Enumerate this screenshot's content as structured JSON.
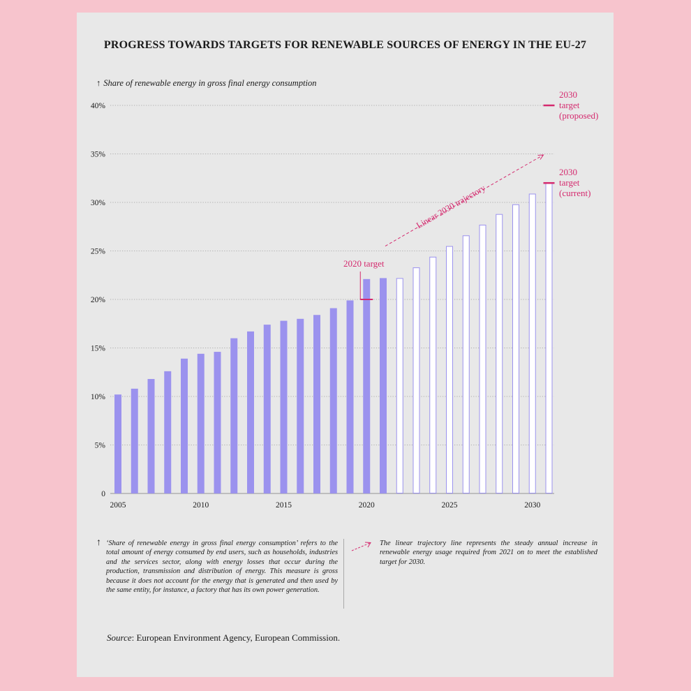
{
  "title": "PROGRESS TOWARDS TARGETS FOR RENEWABLE SOURCES OF ENERGY IN THE EU-27",
  "y_axis_label": "Share of renewable energy in gross final energy consumption",
  "colors": {
    "background": "#f7c4cd",
    "card": "#e8e8e8",
    "actual_bar": "#9b92ee",
    "projected_bar_stroke": "#9b92ee",
    "projected_bar_fill": "#ffffff",
    "target": "#d42a6e",
    "text": "#1a1a1a"
  },
  "chart_data": {
    "type": "bar",
    "title": "PROGRESS TOWARDS TARGETS FOR RENEWABLE SOURCES OF ENERGY IN THE EU-27",
    "ylabel": "Share of renewable energy in gross final energy consumption",
    "xlabel": "",
    "ylim": [
      0,
      40
    ],
    "y_ticks": [
      0,
      5,
      10,
      15,
      20,
      25,
      30,
      35,
      40
    ],
    "y_tick_labels": [
      "0",
      "5%",
      "10%",
      "15%",
      "20%",
      "25%",
      "30%",
      "35%",
      "40%"
    ],
    "x_tick_labels": [
      "2005",
      "2010",
      "2015",
      "2020",
      "2025",
      "2030"
    ],
    "x_tick_years": [
      2005,
      2010,
      2015,
      2020,
      2025,
      2030
    ],
    "grid": true,
    "series": [
      {
        "name": "Share of renewable energy (actual)",
        "style": "filled",
        "years": [
          2005,
          2006,
          2007,
          2008,
          2009,
          2010,
          2011,
          2012,
          2013,
          2014,
          2015,
          2016,
          2017,
          2018,
          2019,
          2020,
          2021
        ],
        "values": [
          10.2,
          10.8,
          11.8,
          12.6,
          13.9,
          14.4,
          14.6,
          16.0,
          16.7,
          17.4,
          17.8,
          18.0,
          18.4,
          19.1,
          19.9,
          22.1,
          22.2
        ]
      },
      {
        "name": "Linear trajectory to 2030 target",
        "style": "outline",
        "years": [
          2021,
          2022,
          2023,
          2024,
          2025,
          2026,
          2027,
          2028,
          2029,
          2030
        ],
        "values": [
          22.2,
          23.3,
          24.4,
          25.5,
          26.6,
          27.7,
          28.8,
          29.8,
          30.9,
          32.0
        ]
      }
    ],
    "targets": [
      {
        "label": "2020 target",
        "year": 2020,
        "value": 20
      },
      {
        "label_lines": [
          "2030",
          "target",
          "(current)"
        ],
        "year": 2030,
        "value": 32
      },
      {
        "label_lines": [
          "2030",
          "target",
          "(proposed)"
        ],
        "year": 2030,
        "value": 40
      }
    ],
    "trajectory_line": {
      "label": "Linear 2030 trajectory",
      "from": {
        "year": 2021,
        "value": 25.5
      },
      "to": {
        "year": 2030,
        "value": 34.9
      }
    }
  },
  "notes": {
    "left_symbol": "↑",
    "left": "‘Share of renewable energy in gross final energy consumption’ refers to the total amount of energy consumed by end users, such as households, industries and the services sector, along with energy losses that occur during the production, transmission and distribution of energy. This measure is gross because it does not account for the energy that is generated and then used by the same entity, for instance, a factory that has its own power generation.",
    "right": "The linear trajectory line represents the steady annual increase in renewable energy usage required from 2021 on to meet the established target for 2030."
  },
  "source": {
    "label": "Source",
    "text": ": European Environment Agency, European Commission."
  }
}
